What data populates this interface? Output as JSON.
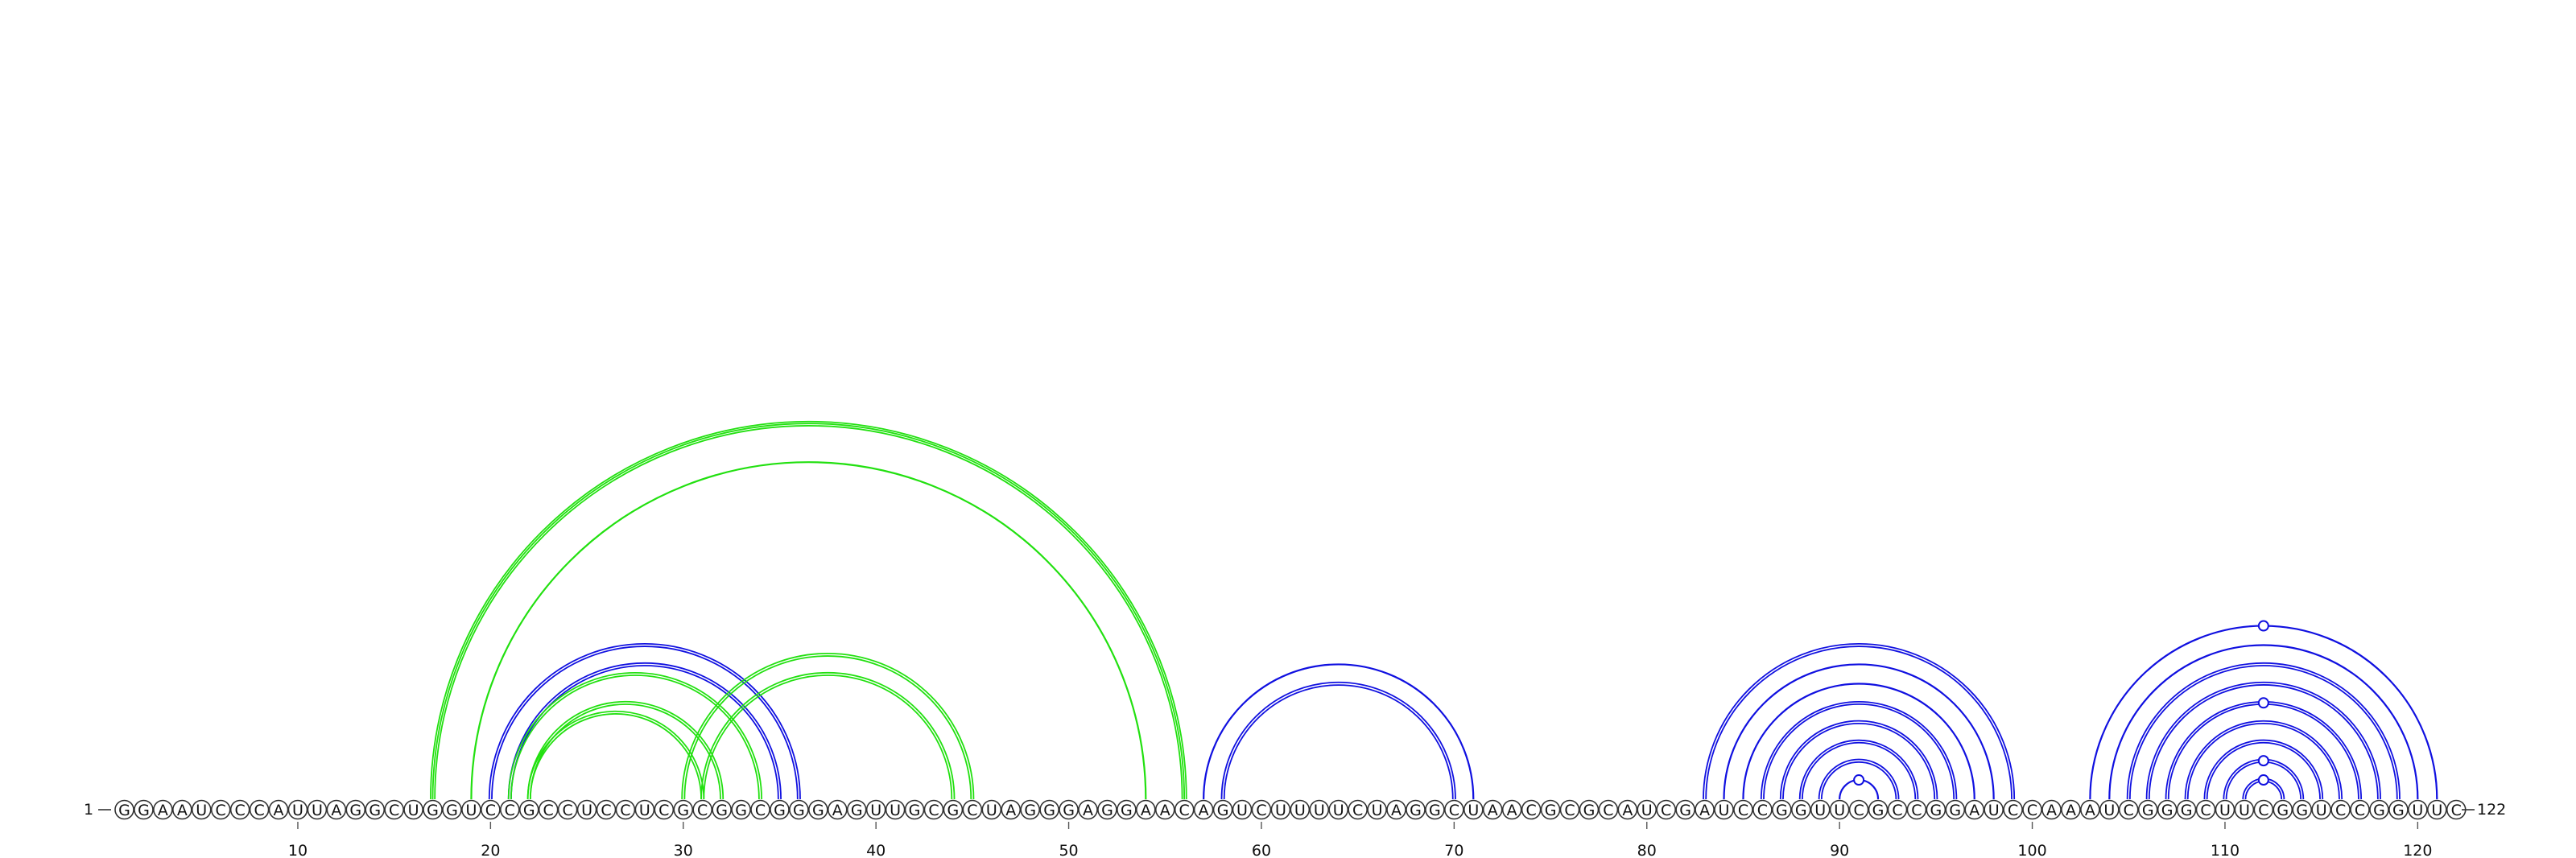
{
  "sequence": "GGAAUCCCAUUAGGCUGGUCCGCCUCCUCGCGGCGGGAGUUGCGCUAGGGAGGAACAGUCUUUUCUAGGCUAACGCGCAUCGAUCCGGUUCGCCGGAUCCAAAUCGGGCUUCGGUCCGGUUC",
  "labels": {
    "start": "1",
    "end": "122"
  },
  "ticks": [
    "10",
    "20",
    "30",
    "40",
    "50",
    "60",
    "70",
    "80",
    "90",
    "100",
    "110",
    "120"
  ],
  "colors": {
    "blue": "#1010e0",
    "green": "#22e010"
  },
  "arcs": [
    {
      "i": 17,
      "j": 56,
      "color": "green",
      "lines": 3
    },
    {
      "i": 19,
      "j": 54,
      "color": "green",
      "lines": 1
    },
    {
      "i": 20,
      "j": 36,
      "color": "blue",
      "lines": 2
    },
    {
      "i": 21,
      "j": 35,
      "color": "blue",
      "lines": 2
    },
    {
      "i": 21,
      "j": 34,
      "color": "green",
      "lines": 2
    },
    {
      "i": 22,
      "j": 32,
      "color": "green",
      "lines": 2
    },
    {
      "i": 22,
      "j": 31,
      "color": "green",
      "lines": 2
    },
    {
      "i": 30,
      "j": 45,
      "color": "green",
      "lines": 2
    },
    {
      "i": 31,
      "j": 44,
      "color": "green",
      "lines": 2
    },
    {
      "i": 57,
      "j": 71,
      "color": "blue",
      "lines": 1
    },
    {
      "i": 58,
      "j": 70,
      "color": "blue",
      "lines": 2
    },
    {
      "i": 83,
      "j": 99,
      "color": "blue",
      "lines": 2
    },
    {
      "i": 84,
      "j": 98,
      "color": "blue",
      "lines": 1
    },
    {
      "i": 85,
      "j": 97,
      "color": "blue",
      "lines": 1
    },
    {
      "i": 86,
      "j": 96,
      "color": "blue",
      "lines": 2
    },
    {
      "i": 87,
      "j": 95,
      "color": "blue",
      "lines": 2
    },
    {
      "i": 88,
      "j": 94,
      "color": "blue",
      "lines": 2
    },
    {
      "i": 89,
      "j": 93,
      "color": "blue",
      "lines": 2
    },
    {
      "i": 90,
      "j": 92,
      "color": "blue",
      "lines": 1
    },
    {
      "i": 103,
      "j": 121,
      "color": "blue",
      "lines": 1
    },
    {
      "i": 104,
      "j": 120,
      "color": "blue",
      "lines": 1
    },
    {
      "i": 105,
      "j": 119,
      "color": "blue",
      "lines": 2
    },
    {
      "i": 106,
      "j": 118,
      "color": "blue",
      "lines": 2
    },
    {
      "i": 107,
      "j": 117,
      "color": "blue",
      "lines": 2
    },
    {
      "i": 108,
      "j": 116,
      "color": "blue",
      "lines": 2
    },
    {
      "i": 109,
      "j": 115,
      "color": "blue",
      "lines": 2
    },
    {
      "i": 110,
      "j": 114,
      "color": "blue",
      "lines": 2
    },
    {
      "i": 111,
      "j": 113,
      "color": "blue",
      "lines": 2
    }
  ],
  "markers": [
    {
      "i": 90,
      "j": 92,
      "color": "blue"
    },
    {
      "i": 103,
      "j": 121,
      "color": "blue"
    },
    {
      "i": 107,
      "j": 117,
      "color": "blue"
    },
    {
      "i": 110,
      "j": 114,
      "color": "blue"
    },
    {
      "i": 111,
      "j": 113,
      "color": "blue"
    }
  ]
}
